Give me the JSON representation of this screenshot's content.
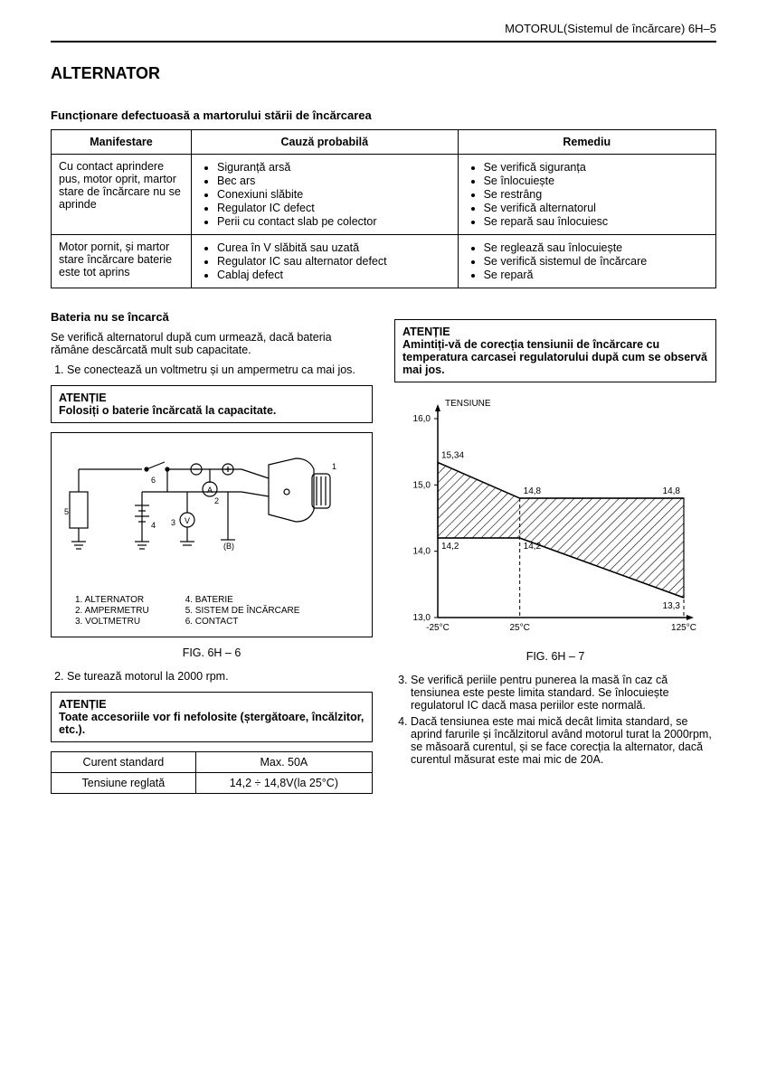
{
  "header": {
    "right": "MOTORUL(Sistemul de încărcare)  6H–5"
  },
  "title": "ALTERNATOR",
  "section1": {
    "heading": "Funcționare defectuoasă a martorului stării de încărcarea",
    "cols": [
      "Manifestare",
      "Cauză probabilă",
      "Remediu"
    ],
    "rows": [
      {
        "m": "Cu contact aprindere pus, motor oprit, martor stare de încărcare nu se aprinde",
        "c": [
          "Siguranță arsă",
          "Bec ars",
          "Conexiuni slăbite",
          "Regulator IC defect",
          "Perii cu contact slab pe colector"
        ],
        "r": [
          "Se verifică siguranța",
          "Se înlocuiește",
          "Se restrâng",
          "Se verifică alternatorul",
          "Se repară sau înlocuiesc"
        ]
      },
      {
        "m": "Motor pornit, și martor stare încărcare baterie este tot aprins",
        "c": [
          "Curea în V slăbită sau uzată",
          "Regulator IC sau alternator defect",
          "Cablaj defect"
        ],
        "r": [
          "Se reglează sau înlocuiește",
          "Se verifică sistemul de încărcare",
          "Se repară"
        ]
      }
    ]
  },
  "section2": {
    "heading": "Bateria nu se încarcă",
    "intro": "Se verifică alternatorul după cum urmează, dacă bateria rămâne descărcată mult sub capacitate.",
    "step1": "Se conectează un voltmetru și un ampermetru ca mai jos.",
    "note1_title": "ATENȚIE",
    "note1_body": "Folosiți o baterie încărcată la capacitate.",
    "fig6_caption": "FIG. 6H – 6",
    "legend": {
      "left": [
        [
          "1.",
          "ALTERNATOR"
        ],
        [
          "2.",
          "AMPERMETRU"
        ],
        [
          "3.",
          "VOLTMETRU"
        ]
      ],
      "right": [
        [
          "4.",
          "BATERIE"
        ],
        [
          "5.",
          "SISTEM DE ÎNCĂRCARE"
        ],
        [
          "6.",
          "CONTACT"
        ]
      ]
    },
    "step2": "Se turează motorul la 2000 rpm.",
    "note2_title": "ATENȚIE",
    "note2_body": "Toate accesoriile vor fi nefolosite (ștergătoare, încălzitor, etc.).",
    "spec": {
      "rows": [
        [
          "Curent standard",
          "Max. 50A"
        ],
        [
          "Tensiune reglată",
          "14,2 ÷ 14,8V(la 25°C)"
        ]
      ]
    }
  },
  "rightcol": {
    "note_title": "ATENȚIE",
    "note_body": "Amintiți-vă de corecția tensiunii de încărcare cu temperatura carcasei regulatorului după cum se observă mai jos.",
    "chart": {
      "type": "area-band",
      "ylabel": "TENSIUNE",
      "ylim": [
        13.0,
        16.0
      ],
      "yticks": [
        "13,0",
        "14,0",
        "15,0",
        "16,0"
      ],
      "xticks": [
        "-25°C",
        "25°C",
        "125°C"
      ],
      "xvals": [
        -25,
        25,
        125
      ],
      "upper": [
        15.34,
        14.8,
        14.8
      ],
      "lower": [
        14.2,
        14.2,
        13.3
      ],
      "labels_upper": [
        "15,34",
        "14,8",
        "14,8"
      ],
      "labels_lower": [
        "14,2",
        "14,2",
        "13,3"
      ],
      "colors": {
        "axis": "#000000",
        "grid": "#000000",
        "hatch": "#000000",
        "bg": "#ffffff",
        "text": "#000000"
      },
      "line_width": 1.2,
      "font_size": 10
    },
    "fig7_caption": "FIG. 6H – 7",
    "step3": "Se verifică periile pentru punerea la masă în caz că tensiunea este peste limita standard. Se înlocuiește regulatorul IC dacă masa periilor este normală.",
    "step4": "Dacă tensiunea este mai mică decât limita standard, se aprind farurile și încălzitorul având motorul turat la 2000rpm, se măsoară curentul, și se face corecția la alternator, dacă curentul măsurat este mai mic de 20A."
  }
}
